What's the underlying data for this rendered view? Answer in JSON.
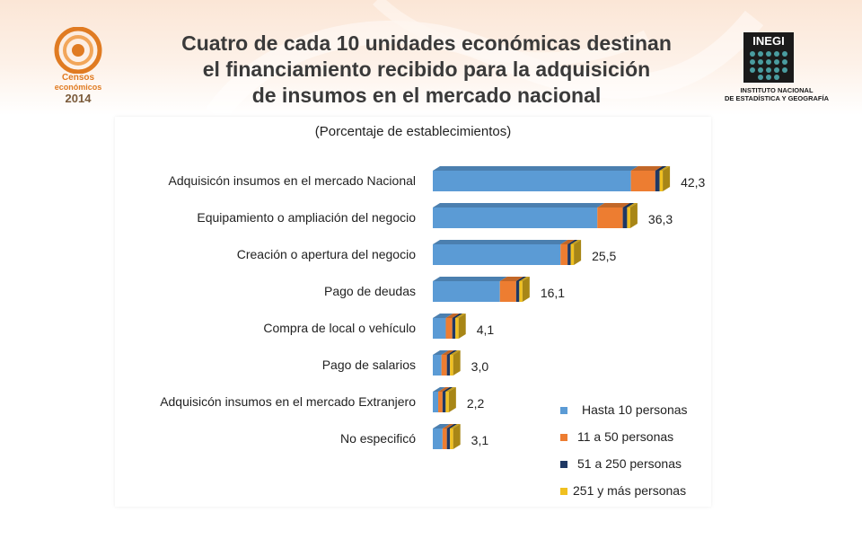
{
  "header": {
    "title_lines": [
      "Cuatro de cada 10 unidades económicas destinan",
      "el financiamiento recibido para la adquisición",
      "de insumos en el mercado nacional"
    ],
    "left_logo": {
      "line1": "Censos",
      "line2": "económicos",
      "line3": "2014"
    },
    "right_logo": {
      "name": "INEGI",
      "line1": "INSTITUTO NACIONAL",
      "line2": "DE ESTADÍSTICA Y GEOGRAFÍA"
    }
  },
  "colors": {
    "hasta_10": "#5b9bd5",
    "de_11_a_50": "#ed7d31",
    "de_51_a_250": "#1f3864",
    "mas_251": "#f0c020",
    "logo_orange": "#e07b22",
    "inegi_teal": "#4a9ca0"
  },
  "chart_data": {
    "type": "bar",
    "orientation": "horizontal",
    "stacked": true,
    "subtitle": "(Porcentaje de establecimientos)",
    "categories": [
      "Adquisicón insumos en el mercado Nacional",
      "Equipamiento o ampliación del negocio",
      "Creación o apertura del negocio",
      "Pago de deudas",
      "Compra de local o vehículo",
      "Pago de salarios",
      "Adquisicón insumos en el mercado Extranjero",
      "No especificó"
    ],
    "totals": [
      "42,3",
      "36,3",
      "25,5",
      "16,1",
      "4,1",
      "3,0",
      "2,2",
      "3,1"
    ],
    "series": [
      {
        "name": "Hasta 10 personas",
        "values": [
          36.6,
          30.4,
          23.6,
          12.4,
          2.4,
          1.6,
          1.0,
          1.8
        ]
      },
      {
        "name": "11 a 50 personas",
        "values": [
          4.5,
          4.7,
          1.3,
          3.0,
          1.2,
          1.0,
          0.8,
          0.8
        ]
      },
      {
        "name": "51 a 250 personas",
        "values": [
          0.8,
          0.8,
          0.3,
          0.5,
          0.3,
          0.2,
          0.2,
          0.3
        ]
      },
      {
        "name": "251 y más personas",
        "values": [
          0.4,
          0.4,
          0.3,
          0.2,
          0.2,
          0.2,
          0.2,
          0.2
        ]
      }
    ],
    "xlim": [
      0,
      42.3
    ],
    "grid": false,
    "legend_position": "bottom-right"
  }
}
